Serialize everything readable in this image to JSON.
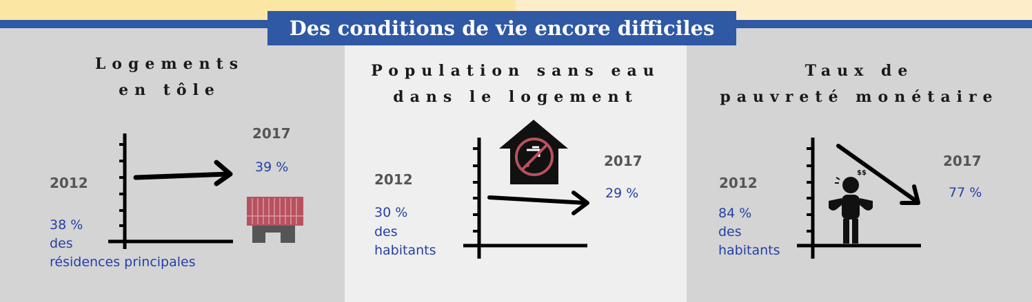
{
  "header": {
    "title": "Des conditions de vie encore difficiles"
  },
  "colors": {
    "accent_blue": "#2f58a5",
    "value_blue": "#243fa5",
    "year_gray": "#555555",
    "roof_red": "#b8515f",
    "panel_gray": "#d4d4d4",
    "panel_light": "#efefef"
  },
  "panels": [
    {
      "title_line1": "Logements",
      "title_line2": "en tôle",
      "year_start": "2012",
      "value_start": "38 %",
      "value_start_desc1": "des",
      "value_start_desc2": "résidences principales",
      "year_end": "2017",
      "value_end": "39 %",
      "icon": "tin-house-icon"
    },
    {
      "title_line1": "Population sans eau",
      "title_line2": "dans le logement",
      "year_start": "2012",
      "value_start": "30 %",
      "value_start_desc1": "des",
      "value_start_desc2": "habitants",
      "year_end": "2017",
      "value_end": "29 %",
      "icon": "no-water-house-icon"
    },
    {
      "title_line1": "Taux de",
      "title_line2": "pauvreté monétaire",
      "year_start": "2012",
      "value_start": "84 %",
      "value_start_desc1": "des",
      "value_start_desc2": "habitants",
      "year_end": "2017",
      "value_end": "77 %",
      "icon": "poor-person-icon"
    }
  ]
}
